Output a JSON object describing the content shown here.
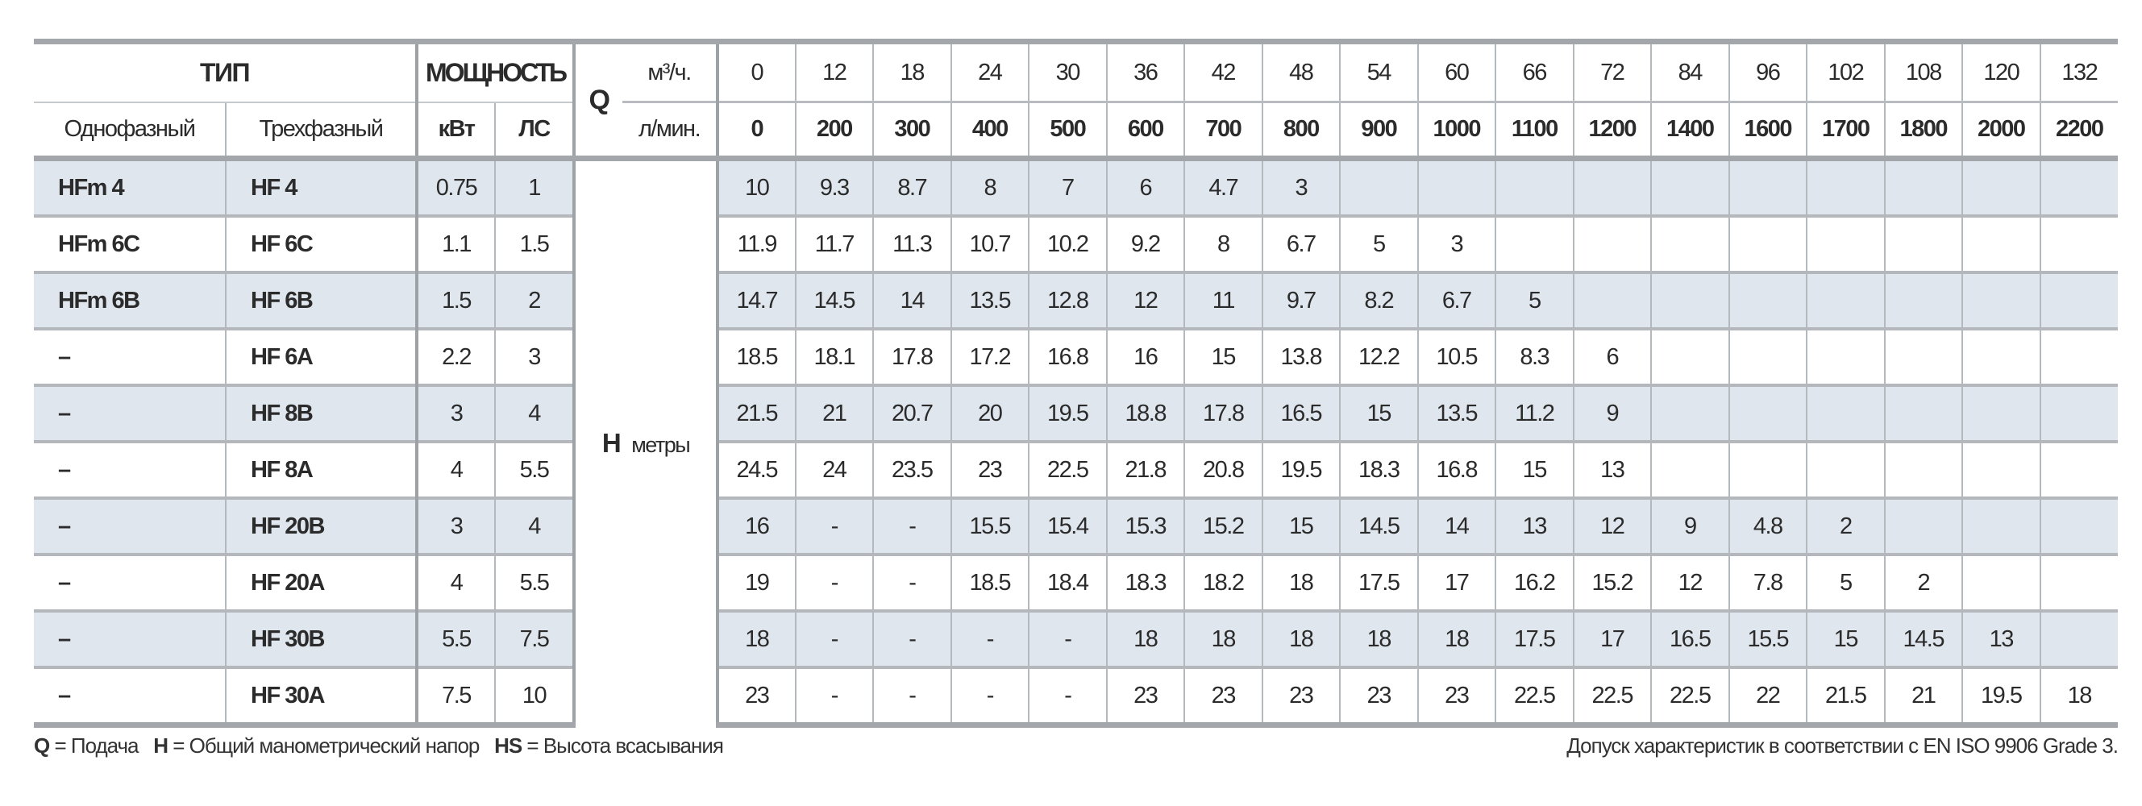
{
  "header": {
    "type_label": "ТИП",
    "power_label": "МОЩНОСТЬ",
    "single_phase_label": "Однофазный",
    "three_phase_label": "Трехфазный",
    "kw_label": "кВт",
    "hp_label": "ЛС",
    "q_label": "Q",
    "q_unit_m3h": "м³/ч.",
    "q_unit_lmin": "л/мин.",
    "h_label": "H",
    "h_unit": "метры",
    "flow_m3h": [
      "0",
      "12",
      "18",
      "24",
      "30",
      "36",
      "42",
      "48",
      "54",
      "60",
      "66",
      "72",
      "84",
      "96",
      "102",
      "108",
      "120",
      "132"
    ],
    "flow_lmin": [
      "0",
      "200",
      "300",
      "400",
      "500",
      "600",
      "700",
      "800",
      "900",
      "1000",
      "1100",
      "1200",
      "1400",
      "1600",
      "1700",
      "1800",
      "2000",
      "2200"
    ]
  },
  "rows": [
    {
      "single": "HFm 4",
      "three": "HF 4",
      "kw": "0.75",
      "hp": "1",
      "values": [
        "10",
        "9.3",
        "8.7",
        "8",
        "7",
        "6",
        "4.7",
        "3",
        "",
        "",
        "",
        "",
        "",
        "",
        "",
        "",
        "",
        ""
      ]
    },
    {
      "single": "HFm 6C",
      "three": "HF 6C",
      "kw": "1.1",
      "hp": "1.5",
      "values": [
        "11.9",
        "11.7",
        "11.3",
        "10.7",
        "10.2",
        "9.2",
        "8",
        "6.7",
        "5",
        "3",
        "",
        "",
        "",
        "",
        "",
        "",
        "",
        ""
      ]
    },
    {
      "single": "HFm 6B",
      "three": "HF 6B",
      "kw": "1.5",
      "hp": "2",
      "values": [
        "14.7",
        "14.5",
        "14",
        "13.5",
        "12.8",
        "12",
        "11",
        "9.7",
        "8.2",
        "6.7",
        "5",
        "",
        "",
        "",
        "",
        "",
        "",
        ""
      ]
    },
    {
      "single": "–",
      "three": "HF 6A",
      "kw": "2.2",
      "hp": "3",
      "values": [
        "18.5",
        "18.1",
        "17.8",
        "17.2",
        "16.8",
        "16",
        "15",
        "13.8",
        "12.2",
        "10.5",
        "8.3",
        "6",
        "",
        "",
        "",
        "",
        "",
        ""
      ]
    },
    {
      "single": "–",
      "three": "HF 8B",
      "kw": "3",
      "hp": "4",
      "values": [
        "21.5",
        "21",
        "20.7",
        "20",
        "19.5",
        "18.8",
        "17.8",
        "16.5",
        "15",
        "13.5",
        "11.2",
        "9",
        "",
        "",
        "",
        "",
        "",
        ""
      ]
    },
    {
      "single": "–",
      "three": "HF 8A",
      "kw": "4",
      "hp": "5.5",
      "values": [
        "24.5",
        "24",
        "23.5",
        "23",
        "22.5",
        "21.8",
        "20.8",
        "19.5",
        "18.3",
        "16.8",
        "15",
        "13",
        "",
        "",
        "",
        "",
        "",
        ""
      ]
    },
    {
      "single": "–",
      "three": "HF 20B",
      "kw": "3",
      "hp": "4",
      "values": [
        "16",
        "-",
        "-",
        "15.5",
        "15.4",
        "15.3",
        "15.2",
        "15",
        "14.5",
        "14",
        "13",
        "12",
        "9",
        "4.8",
        "2",
        "",
        "",
        ""
      ]
    },
    {
      "single": "–",
      "three": "HF 20A",
      "kw": "4",
      "hp": "5.5",
      "values": [
        "19",
        "-",
        "-",
        "18.5",
        "18.4",
        "18.3",
        "18.2",
        "18",
        "17.5",
        "17",
        "16.2",
        "15.2",
        "12",
        "7.8",
        "5",
        "2",
        "",
        ""
      ]
    },
    {
      "single": "–",
      "three": "HF 30B",
      "kw": "5.5",
      "hp": "7.5",
      "values": [
        "18",
        "-",
        "-",
        "-",
        "-",
        "18",
        "18",
        "18",
        "18",
        "18",
        "17.5",
        "17",
        "16.5",
        "15.5",
        "15",
        "14.5",
        "13",
        ""
      ]
    },
    {
      "single": "–",
      "three": "HF 30A",
      "kw": "7.5",
      "hp": "10",
      "values": [
        "23",
        "-",
        "-",
        "-",
        "-",
        "23",
        "23",
        "23",
        "23",
        "23",
        "22.5",
        "22.5",
        "22.5",
        "22",
        "21.5",
        "21",
        "19.5",
        "18"
      ]
    }
  ],
  "footer": {
    "q_key": "Q",
    "q_text": "= Подача",
    "h_key": "H",
    "h_text": "= Общий манометрический напор",
    "hs_key": "HS",
    "hs_text": "= Высота всасывания",
    "tolerance": "Допуск характеристик в соответствии с EN ISO 9906 Grade 3."
  },
  "colors": {
    "row_shade": "#dfe6ee",
    "rule": "#a3a7ab",
    "text": "#2b2b2b"
  }
}
